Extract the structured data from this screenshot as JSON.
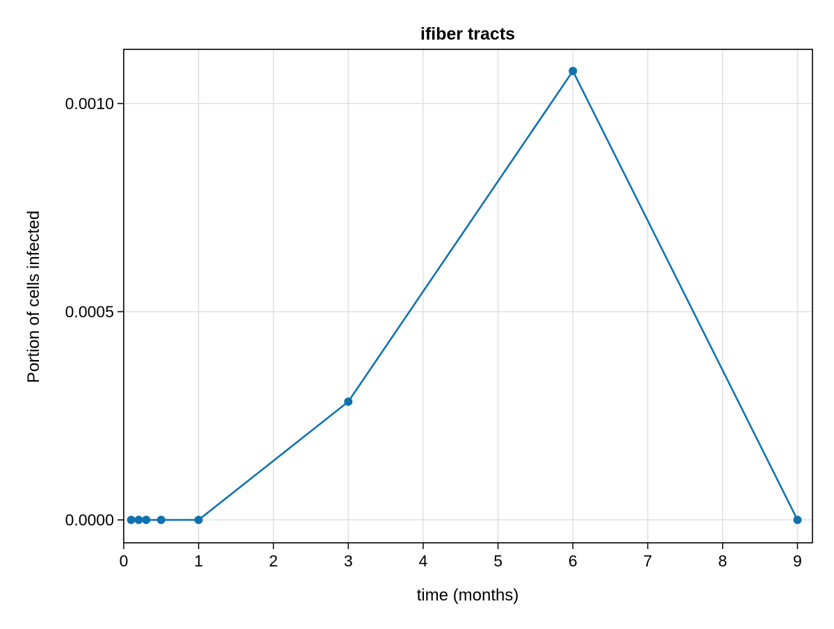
{
  "chart_data": {
    "type": "line",
    "title": "ifiber tracts",
    "xlabel": "time (months)",
    "ylabel": "Portion of cells infected",
    "xlim": [
      0,
      9.2
    ],
    "ylim": [
      -5.5e-05,
      0.00113
    ],
    "x_ticks": [
      0,
      1,
      2,
      3,
      4,
      5,
      6,
      7,
      8,
      9
    ],
    "x_tick_labels": [
      "0",
      "1",
      "2",
      "3",
      "4",
      "5",
      "6",
      "7",
      "8",
      "9"
    ],
    "y_ticks": [
      0,
      0.0005,
      0.001
    ],
    "y_tick_labels": [
      "0.0000",
      "0.0005",
      "0.0010"
    ],
    "grid": true,
    "series": [
      {
        "x": [
          0.1,
          0.2,
          0.3,
          0.5,
          1,
          3,
          6,
          9
        ],
        "y": [
          0,
          0,
          0,
          0,
          0,
          0.000284,
          0.001078,
          0
        ],
        "color": "#0f72b0",
        "markers": true
      }
    ],
    "colors": {
      "series": "#0f72b0",
      "grid": "#e0e0e0",
      "axis": "#000000"
    }
  }
}
